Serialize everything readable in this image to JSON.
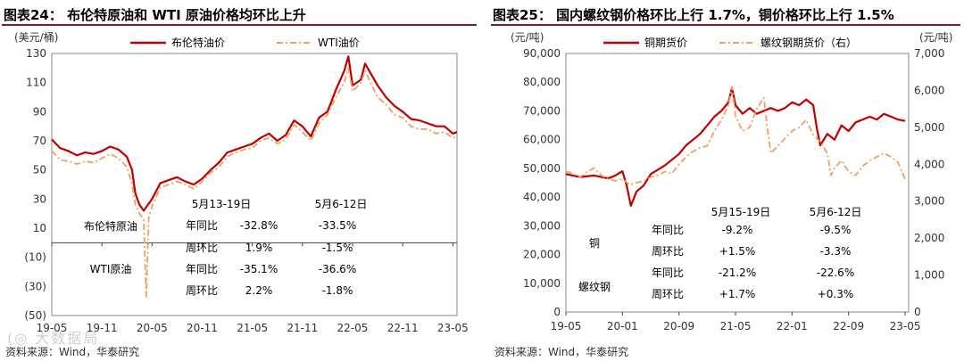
{
  "left": {
    "title": "图表24：  布伦特原油和 WTI 原油价格均环比上升",
    "source": "资料来源：Wind，华泰研究",
    "watermark": "(◎ 大数据局",
    "chart_data": {
      "type": "line",
      "yunit": "(美元/桶)",
      "ylim": [
        -50,
        130
      ],
      "yticks": [
        {
          "v": 130,
          "t": "130"
        },
        {
          "v": 110,
          "t": "110"
        },
        {
          "v": 90,
          "t": "90"
        },
        {
          "v": 70,
          "t": "70"
        },
        {
          "v": 50,
          "t": "50"
        },
        {
          "v": 30,
          "t": "30"
        },
        {
          "v": 10,
          "t": "10"
        },
        {
          "v": -10,
          "t": "(10)"
        },
        {
          "v": -30,
          "t": "(30)"
        },
        {
          "v": -50,
          "t": "(50)"
        }
      ],
      "xticks": [
        "19-05",
        "19-11",
        "20-05",
        "20-11",
        "21-05",
        "21-11",
        "22-05",
        "22-11",
        "23-05"
      ],
      "x_months": [
        0,
        6,
        12,
        18,
        24,
        30,
        36,
        42,
        48
      ],
      "series": [
        {
          "name": "布伦特油价",
          "color": "#c00000",
          "style": "solid",
          "points": [
            [
              0,
              71
            ],
            [
              1,
              65
            ],
            [
              2,
              63
            ],
            [
              3,
              60
            ],
            [
              4,
              62
            ],
            [
              5,
              61
            ],
            [
              6,
              63
            ],
            [
              7,
              66
            ],
            [
              8,
              64
            ],
            [
              9,
              59
            ],
            [
              9.6,
              50
            ],
            [
              10,
              34
            ],
            [
              10.5,
              26
            ],
            [
              11,
              22
            ],
            [
              11.5,
              26
            ],
            [
              12,
              30
            ],
            [
              13,
              41
            ],
            [
              14,
              43
            ],
            [
              15,
              45
            ],
            [
              16,
              42
            ],
            [
              17,
              40
            ],
            [
              18,
              44
            ],
            [
              19,
              50
            ],
            [
              20,
              55
            ],
            [
              21,
              62
            ],
            [
              22,
              64
            ],
            [
              23,
              66
            ],
            [
              24,
              68
            ],
            [
              25,
              72
            ],
            [
              26,
              75
            ],
            [
              27,
              70
            ],
            [
              28,
              74
            ],
            [
              29,
              84
            ],
            [
              30,
              80
            ],
            [
              31,
              73
            ],
            [
              32,
              86
            ],
            [
              33,
              90
            ],
            [
              34,
              105
            ],
            [
              35,
              118
            ],
            [
              35.5,
              128
            ],
            [
              36,
              108
            ],
            [
              37,
              112
            ],
            [
              37.5,
              123
            ],
            [
              38,
              118
            ],
            [
              39,
              108
            ],
            [
              40,
              100
            ],
            [
              41,
              94
            ],
            [
              42,
              90
            ],
            [
              43,
              85
            ],
            [
              44,
              84
            ],
            [
              45,
              82
            ],
            [
              46,
              80
            ],
            [
              47,
              80
            ],
            [
              48,
              75
            ],
            [
              48.5,
              76
            ]
          ]
        },
        {
          "name": "WTI油价",
          "color": "#f0a060",
          "style": "dash",
          "points": [
            [
              0,
              63
            ],
            [
              1,
              57
            ],
            [
              2,
              56
            ],
            [
              3,
              54
            ],
            [
              4,
              56
            ],
            [
              5,
              55
            ],
            [
              6,
              58
            ],
            [
              7,
              61
            ],
            [
              8,
              58
            ],
            [
              9,
              52
            ],
            [
              9.6,
              40
            ],
            [
              10,
              26
            ],
            [
              10.5,
              20
            ],
            [
              11,
              16
            ],
            [
              11.3,
              -37
            ],
            [
              11.6,
              17
            ],
            [
              12,
              25
            ],
            [
              13,
              38
            ],
            [
              14,
              40
            ],
            [
              15,
              42
            ],
            [
              16,
              40
            ],
            [
              17,
              37
            ],
            [
              18,
              42
            ],
            [
              19,
              48
            ],
            [
              20,
              52
            ],
            [
              21,
              59
            ],
            [
              22,
              62
            ],
            [
              23,
              64
            ],
            [
              24,
              65
            ],
            [
              25,
              70
            ],
            [
              26,
              72
            ],
            [
              27,
              68
            ],
            [
              28,
              71
            ],
            [
              29,
              81
            ],
            [
              30,
              76
            ],
            [
              31,
              70
            ],
            [
              32,
              82
            ],
            [
              33,
              88
            ],
            [
              34,
              100
            ],
            [
              35,
              110
            ],
            [
              35.5,
              120
            ],
            [
              36,
              104
            ],
            [
              37,
              110
            ],
            [
              37.5,
              118
            ],
            [
              38,
              112
            ],
            [
              39,
              100
            ],
            [
              40,
              95
            ],
            [
              41,
              88
            ],
            [
              42,
              86
            ],
            [
              43,
              80
            ],
            [
              44,
              78
            ],
            [
              45,
              78
            ],
            [
              46,
              75
            ],
            [
              47,
              76
            ],
            [
              48,
              72
            ],
            [
              48.5,
              73
            ]
          ]
        }
      ],
      "table": {
        "headers": [
          "5月13-19日",
          "5月6-12日"
        ],
        "groups": [
          {
            "name": "布伦特原油",
            "rows": [
              {
                "label": "年同比",
                "v1": "-32.8%",
                "v2": "-33.5%"
              },
              {
                "label": "周环比",
                "v1": "1.9%",
                "v2": "-1.5%"
              }
            ]
          },
          {
            "name": "WTI原油",
            "rows": [
              {
                "label": "年同比",
                "v1": "-35.1%",
                "v2": "-36.6%"
              },
              {
                "label": "周环比",
                "v1": "2.2%",
                "v2": "-1.8%"
              }
            ]
          }
        ]
      }
    }
  },
  "right": {
    "title": "图表25：  国内螺纹钢价格环比上行 1.7%，铜价格环比上行 1.5%",
    "source": "资料来源：Wind，华泰研究",
    "chart_data": {
      "type": "line",
      "yunit_left": "(元/吨)",
      "yunit_right": "(元/吨)",
      "ylim_left": [
        0,
        90000
      ],
      "ylim_right": [
        0,
        7000
      ],
      "yticks_left": [
        {
          "v": 90000,
          "t": "90,000"
        },
        {
          "v": 80000,
          "t": "80,000"
        },
        {
          "v": 70000,
          "t": "70,000"
        },
        {
          "v": 60000,
          "t": "60,000"
        },
        {
          "v": 50000,
          "t": "50,000"
        },
        {
          "v": 40000,
          "t": "40,000"
        },
        {
          "v": 30000,
          "t": "30,000"
        },
        {
          "v": 20000,
          "t": "20,000"
        },
        {
          "v": 10000,
          "t": "10,000"
        },
        {
          "v": 0,
          "t": "0"
        }
      ],
      "yticks_right": [
        {
          "v": 7000,
          "t": "7,000"
        },
        {
          "v": 6000,
          "t": "6,000"
        },
        {
          "v": 5000,
          "t": "5,000"
        },
        {
          "v": 4000,
          "t": "4,000"
        },
        {
          "v": 3000,
          "t": "3,000"
        },
        {
          "v": 2000,
          "t": "2,000"
        },
        {
          "v": 1000,
          "t": "1,000"
        },
        {
          "v": 0,
          "t": "0"
        }
      ],
      "xticks": [
        "19-05",
        "20-01",
        "20-09",
        "21-05",
        "22-01",
        "22-09",
        "23-05"
      ],
      "x_months": [
        0,
        8,
        16,
        24,
        32,
        40,
        48
      ],
      "series": [
        {
          "name": "铜期货价",
          "axis": "left",
          "color": "#c00000",
          "style": "solid",
          "points": [
            [
              0,
              48000
            ],
            [
              2,
              47000
            ],
            [
              4,
              47500
            ],
            [
              6,
              46500
            ],
            [
              7,
              47500
            ],
            [
              8,
              49000
            ],
            [
              8.6,
              44000
            ],
            [
              9.2,
              37000
            ],
            [
              10,
              42000
            ],
            [
              11,
              44000
            ],
            [
              12,
              48000
            ],
            [
              14,
              51000
            ],
            [
              15,
              53000
            ],
            [
              16,
              55000
            ],
            [
              17,
              58000
            ],
            [
              18,
              60000
            ],
            [
              19,
              62000
            ],
            [
              20,
              65000
            ],
            [
              21,
              68000
            ],
            [
              22,
              70000
            ],
            [
              23,
              73000
            ],
            [
              23.5,
              78000
            ],
            [
              24,
              72000
            ],
            [
              25,
              69000
            ],
            [
              26,
              71000
            ],
            [
              27,
              69000
            ],
            [
              28,
              70000
            ],
            [
              29,
              71000
            ],
            [
              30,
              70000
            ],
            [
              31,
              71000
            ],
            [
              32,
              73000
            ],
            [
              33,
              72000
            ],
            [
              34,
              74000
            ],
            [
              35,
              72000
            ],
            [
              35.5,
              64000
            ],
            [
              36,
              58000
            ],
            [
              37,
              62000
            ],
            [
              38,
              60000
            ],
            [
              39,
              65000
            ],
            [
              40,
              63000
            ],
            [
              41,
              66000
            ],
            [
              42,
              67000
            ],
            [
              43,
              68000
            ],
            [
              44,
              67000
            ],
            [
              45,
              69000
            ],
            [
              46,
              68000
            ],
            [
              47,
              67000
            ],
            [
              48,
              66500
            ]
          ]
        },
        {
          "name": "螺纹钢期货价（右）",
          "axis": "right",
          "color": "#f0a060",
          "style": "dash",
          "points": [
            [
              0,
              3800
            ],
            [
              1,
              3750
            ],
            [
              2,
              3650
            ],
            [
              3,
              3800
            ],
            [
              4,
              3900
            ],
            [
              5,
              3700
            ],
            [
              6,
              3600
            ],
            [
              7,
              3550
            ],
            [
              8,
              3600
            ],
            [
              9,
              3450
            ],
            [
              10,
              3500
            ],
            [
              11,
              3550
            ],
            [
              12,
              3650
            ],
            [
              13,
              3700
            ],
            [
              14,
              3800
            ],
            [
              15,
              3750
            ],
            [
              16,
              4000
            ],
            [
              17,
              4200
            ],
            [
              18,
              4350
            ],
            [
              19,
              4450
            ],
            [
              20,
              4500
            ],
            [
              21,
              4900
            ],
            [
              22,
              5200
            ],
            [
              23,
              5600
            ],
            [
              23.5,
              6100
            ],
            [
              24,
              5300
            ],
            [
              25,
              4900
            ],
            [
              26,
              5000
            ],
            [
              27,
              5500
            ],
            [
              28,
              5800
            ],
            [
              28.5,
              5000
            ],
            [
              29,
              4300
            ],
            [
              30,
              4500
            ],
            [
              31,
              4700
            ],
            [
              32,
              4900
            ],
            [
              33,
              5000
            ],
            [
              34,
              5200
            ],
            [
              35,
              4800
            ],
            [
              36,
              4600
            ],
            [
              37,
              4300
            ],
            [
              37.5,
              3700
            ],
            [
              38,
              3900
            ],
            [
              39,
              4100
            ],
            [
              40,
              3800
            ],
            [
              41,
              3700
            ],
            [
              42,
              3950
            ],
            [
              43,
              4100
            ],
            [
              44,
              4200
            ],
            [
              45,
              4300
            ],
            [
              46,
              4200
            ],
            [
              47,
              4050
            ],
            [
              48,
              3600
            ]
          ]
        }
      ],
      "table": {
        "headers": [
          "5月15-19日",
          "5月6-12日"
        ],
        "groups": [
          {
            "name": "铜",
            "rows": [
              {
                "label": "年同比",
                "v1": "-9.2%",
                "v2": "-9.5%"
              },
              {
                "label": "周环比",
                "v1": "+1.5%",
                "v2": "-3.3%"
              }
            ]
          },
          {
            "name": "螺纹钢",
            "rows": [
              {
                "label": "年同比",
                "v1": "-21.2%",
                "v2": "-22.6%"
              },
              {
                "label": "周环比",
                "v1": "+1.7%",
                "v2": "+0.3%"
              }
            ]
          }
        ]
      }
    }
  }
}
